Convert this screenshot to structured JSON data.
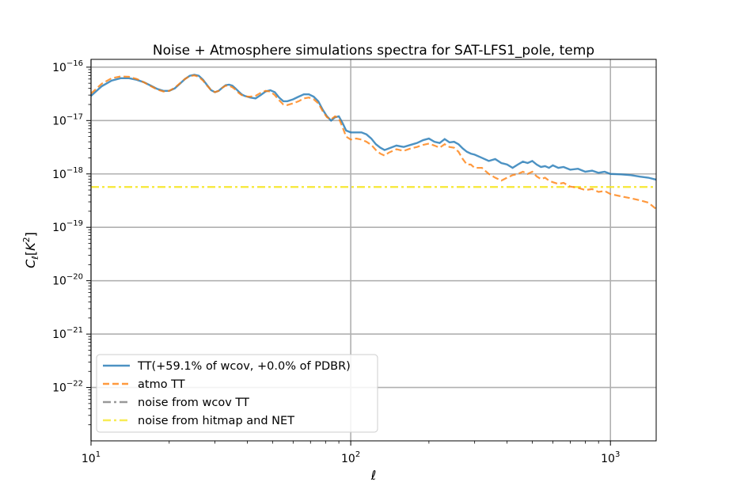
{
  "chart_data": {
    "type": "line",
    "title": "Noise + Atmosphere simulations spectra for SAT-LFS1_pole, temp",
    "xlabel": "ℓ",
    "ylabel": "C_ℓ[K²]",
    "xscale": "log",
    "yscale": "log",
    "xlim": [
      10,
      1500
    ],
    "ylim": [
      1e-23,
      1.4e-16
    ],
    "grid": true,
    "legend_position": "lower-left",
    "x_ticks": [
      {
        "value": 10,
        "base": "10",
        "exp": "1"
      },
      {
        "value": 100,
        "base": "10",
        "exp": "2"
      },
      {
        "value": 1000,
        "base": "10",
        "exp": "3"
      }
    ],
    "y_ticks": [
      {
        "value": 1e-16,
        "base": "10",
        "exp": "−16"
      },
      {
        "value": 1e-17,
        "base": "10",
        "exp": "−17"
      },
      {
        "value": 1e-18,
        "base": "10",
        "exp": "−18"
      },
      {
        "value": 1e-19,
        "base": "10",
        "exp": "−19"
      },
      {
        "value": 1e-20,
        "base": "10",
        "exp": "−20"
      },
      {
        "value": 1e-21,
        "base": "10",
        "exp": "−21"
      },
      {
        "value": 1e-22,
        "base": "10",
        "exp": "−22"
      }
    ],
    "series": [
      {
        "name": "TT(+59.1% of wcov, +0.0% of PDBR)",
        "color": "#1f77b4",
        "style": "solid",
        "points": [
          [
            10,
            2.9e-17
          ],
          [
            11,
            4.4e-17
          ],
          [
            12,
            5.6e-17
          ],
          [
            13,
            6.2e-17
          ],
          [
            14,
            6.2e-17
          ],
          [
            15,
            5.8e-17
          ],
          [
            16,
            5.2e-17
          ],
          [
            17,
            4.5e-17
          ],
          [
            18,
            3.9e-17
          ],
          [
            19,
            3.6e-17
          ],
          [
            20,
            3.6e-17
          ],
          [
            21,
            4e-17
          ],
          [
            22,
            4.9e-17
          ],
          [
            23,
            6e-17
          ],
          [
            24,
            6.9e-17
          ],
          [
            25,
            7.2e-17
          ],
          [
            26,
            6.9e-17
          ],
          [
            27,
            5.8e-17
          ],
          [
            28,
            4.6e-17
          ],
          [
            29,
            3.7e-17
          ],
          [
            30,
            3.4e-17
          ],
          [
            31,
            3.6e-17
          ],
          [
            32,
            4.1e-17
          ],
          [
            33,
            4.6e-17
          ],
          [
            34,
            4.7e-17
          ],
          [
            35,
            4.5e-17
          ],
          [
            36,
            4e-17
          ],
          [
            37,
            3.5e-17
          ],
          [
            38,
            3.1e-17
          ],
          [
            39,
            2.9e-17
          ],
          [
            40,
            2.8e-17
          ],
          [
            41,
            2.7e-17
          ],
          [
            43,
            2.6e-17
          ],
          [
            45,
            3e-17
          ],
          [
            47,
            3.5e-17
          ],
          [
            49,
            3.7e-17
          ],
          [
            51,
            3.4e-17
          ],
          [
            53,
            2.7e-17
          ],
          [
            55,
            2.3e-17
          ],
          [
            57,
            2.3e-17
          ],
          [
            60,
            2.5e-17
          ],
          [
            63,
            2.8e-17
          ],
          [
            66,
            3.1e-17
          ],
          [
            69,
            3.1e-17
          ],
          [
            72,
            2.8e-17
          ],
          [
            75,
            2.3e-17
          ],
          [
            78,
            1.6e-17
          ],
          [
            81,
            1.2e-17
          ],
          [
            84,
            1e-17
          ],
          [
            87,
            1.15e-17
          ],
          [
            90,
            1.2e-17
          ],
          [
            93,
            9e-18
          ],
          [
            96,
            6.5e-18
          ],
          [
            100,
            6e-18
          ],
          [
            105,
            6e-18
          ],
          [
            110,
            6e-18
          ],
          [
            115,
            5.5e-18
          ],
          [
            120,
            4.6e-18
          ],
          [
            125,
            3.6e-18
          ],
          [
            130,
            3.1e-18
          ],
          [
            135,
            2.8e-18
          ],
          [
            140,
            3e-18
          ],
          [
            150,
            3.4e-18
          ],
          [
            160,
            3.2e-18
          ],
          [
            170,
            3.5e-18
          ],
          [
            180,
            3.8e-18
          ],
          [
            190,
            4.3e-18
          ],
          [
            200,
            4.6e-18
          ],
          [
            210,
            4e-18
          ],
          [
            220,
            3.8e-18
          ],
          [
            230,
            4.5e-18
          ],
          [
            240,
            3.9e-18
          ],
          [
            250,
            4e-18
          ],
          [
            260,
            3.6e-18
          ],
          [
            270,
            3e-18
          ],
          [
            280,
            2.6e-18
          ],
          [
            290,
            2.4e-18
          ],
          [
            300,
            2.3e-18
          ],
          [
            320,
            2e-18
          ],
          [
            340,
            1.75e-18
          ],
          [
            360,
            1.9e-18
          ],
          [
            380,
            1.6e-18
          ],
          [
            400,
            1.5e-18
          ],
          [
            420,
            1.3e-18
          ],
          [
            440,
            1.5e-18
          ],
          [
            460,
            1.7e-18
          ],
          [
            480,
            1.6e-18
          ],
          [
            500,
            1.75e-18
          ],
          [
            520,
            1.5e-18
          ],
          [
            540,
            1.35e-18
          ],
          [
            560,
            1.4e-18
          ],
          [
            580,
            1.3e-18
          ],
          [
            600,
            1.45e-18
          ],
          [
            630,
            1.3e-18
          ],
          [
            660,
            1.35e-18
          ],
          [
            700,
            1.2e-18
          ],
          [
            750,
            1.25e-18
          ],
          [
            800,
            1.1e-18
          ],
          [
            850,
            1.15e-18
          ],
          [
            900,
            1.05e-18
          ],
          [
            950,
            1.1e-18
          ],
          [
            1000,
            1e-18
          ],
          [
            1100,
            9.8e-19
          ],
          [
            1200,
            9.5e-19
          ],
          [
            1300,
            8.9e-19
          ],
          [
            1400,
            8.5e-19
          ],
          [
            1500,
            7.8e-19
          ]
        ]
      },
      {
        "name": "atmo TT",
        "color": "#ff7f0e",
        "style": "dashed",
        "points": [
          [
            10,
            3.2e-17
          ],
          [
            11,
            4.9e-17
          ],
          [
            12,
            6.2e-17
          ],
          [
            13,
            6.7e-17
          ],
          [
            14,
            6.6e-17
          ],
          [
            15,
            6e-17
          ],
          [
            16,
            5.2e-17
          ],
          [
            17,
            4.4e-17
          ],
          [
            18,
            3.8e-17
          ],
          [
            19,
            3.5e-17
          ],
          [
            20,
            3.6e-17
          ],
          [
            21,
            4.1e-17
          ],
          [
            22,
            5e-17
          ],
          [
            23,
            6e-17
          ],
          [
            24,
            6.8e-17
          ],
          [
            25,
            7e-17
          ],
          [
            26,
            6.6e-17
          ],
          [
            27,
            5.6e-17
          ],
          [
            28,
            4.5e-17
          ],
          [
            29,
            3.7e-17
          ],
          [
            30,
            3.4e-17
          ],
          [
            31,
            3.6e-17
          ],
          [
            32,
            4.1e-17
          ],
          [
            33,
            4.5e-17
          ],
          [
            34,
            4.5e-17
          ],
          [
            35,
            4.2e-17
          ],
          [
            36,
            3.8e-17
          ],
          [
            37,
            3.3e-17
          ],
          [
            38,
            3e-17
          ],
          [
            39,
            2.9e-17
          ],
          [
            40,
            2.8e-17
          ],
          [
            41,
            2.8e-17
          ],
          [
            43,
            2.9e-17
          ],
          [
            45,
            3.3e-17
          ],
          [
            47,
            3.6e-17
          ],
          [
            49,
            3.5e-17
          ],
          [
            51,
            3e-17
          ],
          [
            53,
            2.4e-17
          ],
          [
            55,
            2e-17
          ],
          [
            57,
            1.95e-17
          ],
          [
            60,
            2.1e-17
          ],
          [
            63,
            2.3e-17
          ],
          [
            66,
            2.6e-17
          ],
          [
            69,
            2.7e-17
          ],
          [
            72,
            2.5e-17
          ],
          [
            75,
            2.1e-17
          ],
          [
            78,
            1.5e-17
          ],
          [
            81,
            1.15e-17
          ],
          [
            84,
            1.05e-17
          ],
          [
            87,
            1.2e-17
          ],
          [
            90,
            1.1e-17
          ],
          [
            93,
            7.5e-18
          ],
          [
            96,
            5e-18
          ],
          [
            100,
            4.4e-18
          ],
          [
            105,
            4.6e-18
          ],
          [
            110,
            4.4e-18
          ],
          [
            115,
            4e-18
          ],
          [
            120,
            3.5e-18
          ],
          [
            125,
            2.8e-18
          ],
          [
            130,
            2.4e-18
          ],
          [
            135,
            2.2e-18
          ],
          [
            140,
            2.5e-18
          ],
          [
            150,
            2.9e-18
          ],
          [
            160,
            2.7e-18
          ],
          [
            170,
            3e-18
          ],
          [
            180,
            3.2e-18
          ],
          [
            190,
            3.5e-18
          ],
          [
            200,
            3.7e-18
          ],
          [
            210,
            3.4e-18
          ],
          [
            220,
            3.1e-18
          ],
          [
            230,
            3.6e-18
          ],
          [
            240,
            3.2e-18
          ],
          [
            250,
            3.1e-18
          ],
          [
            260,
            2.6e-18
          ],
          [
            270,
            1.9e-18
          ],
          [
            280,
            1.5e-18
          ],
          [
            290,
            1.5e-18
          ],
          [
            300,
            1.3e-18
          ],
          [
            320,
            1.3e-18
          ],
          [
            340,
            1e-18
          ],
          [
            360,
            8.5e-19
          ],
          [
            380,
            7.5e-19
          ],
          [
            400,
            8.5e-19
          ],
          [
            420,
            9.5e-19
          ],
          [
            440,
            1e-18
          ],
          [
            460,
            1.1e-18
          ],
          [
            480,
            1e-18
          ],
          [
            500,
            1.1e-18
          ],
          [
            520,
            9e-19
          ],
          [
            540,
            8e-19
          ],
          [
            560,
            8.5e-19
          ],
          [
            580,
            7.5e-19
          ],
          [
            600,
            7e-19
          ],
          [
            630,
            6.5e-19
          ],
          [
            660,
            6.8e-19
          ],
          [
            700,
            5.8e-19
          ],
          [
            750,
            5.5e-19
          ],
          [
            800,
            5e-19
          ],
          [
            850,
            5.2e-19
          ],
          [
            900,
            4.6e-19
          ],
          [
            950,
            4.8e-19
          ],
          [
            1000,
            4.2e-19
          ],
          [
            1100,
            3.8e-19
          ],
          [
            1200,
            3.5e-19
          ],
          [
            1300,
            3.2e-19
          ],
          [
            1400,
            2.9e-19
          ],
          [
            1500,
            2.2e-19
          ]
        ]
      },
      {
        "name": "noise from wcov TT",
        "color": "#7f7f7f",
        "style": "dashdot",
        "points": []
      },
      {
        "name": "noise from hitmap and NET",
        "color": "#f5e72a",
        "style": "dashdot",
        "points": [
          [
            10,
            5.7e-19
          ],
          [
            1500,
            5.7e-19
          ]
        ]
      }
    ]
  }
}
